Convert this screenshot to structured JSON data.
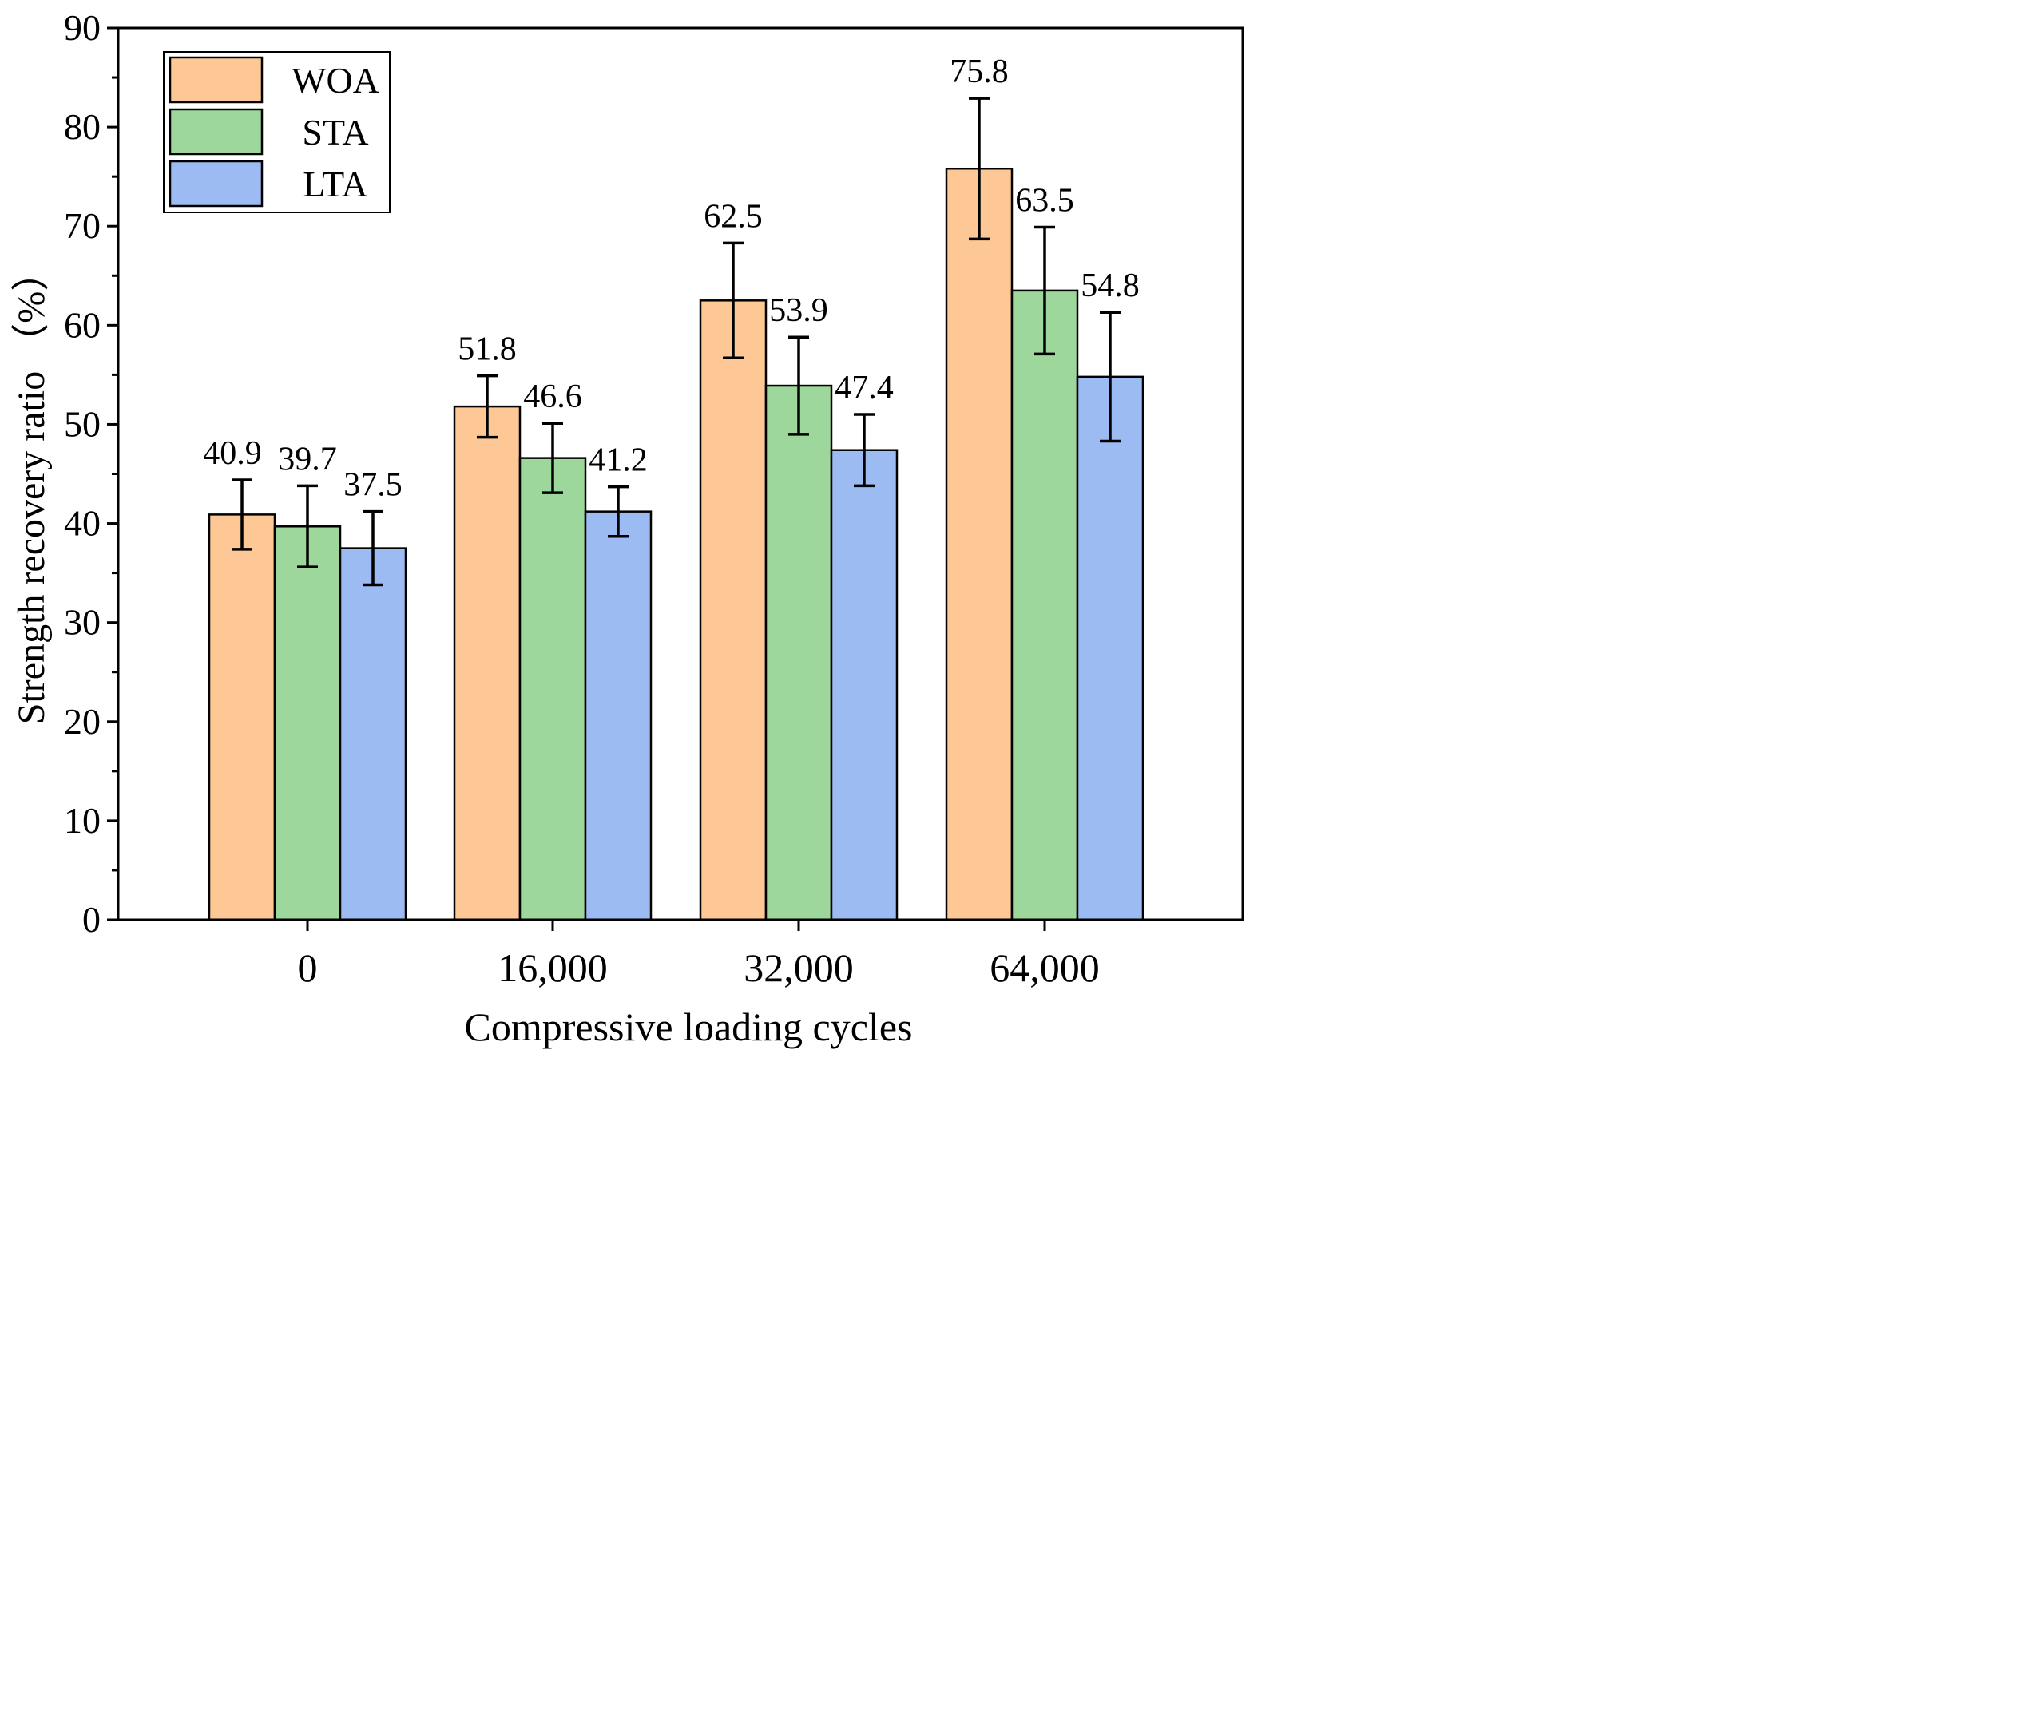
{
  "chart_data": {
    "type": "bar",
    "title": "",
    "xlabel": "Compressive loading cycles",
    "ylabel": "Strength recovery ratio  （%）",
    "categories": [
      "0",
      "16,000",
      "32,000",
      "64,000"
    ],
    "ylim": [
      0,
      90
    ],
    "yticks": [
      0,
      10,
      20,
      30,
      40,
      50,
      60,
      70,
      80,
      90
    ],
    "ytick_labels": [
      "0",
      "10",
      "20",
      "30",
      "40",
      "50",
      "60",
      "70",
      "80",
      "90"
    ],
    "grid": false,
    "legend_position": "top-left",
    "series": [
      {
        "name": "WOA",
        "color": "#FDC896",
        "values": [
          40.9,
          51.8,
          62.5,
          75.8
        ],
        "labels": [
          "40.9",
          "51.8",
          "62.5",
          "75.8"
        ],
        "error_low": [
          37.4,
          48.7,
          56.7,
          68.7
        ],
        "error_high": [
          44.4,
          54.9,
          68.3,
          82.9
        ]
      },
      {
        "name": "STA",
        "color": "#9ED79B",
        "values": [
          39.7,
          46.6,
          53.9,
          63.5
        ],
        "labels": [
          "39.7",
          "46.6",
          "53.9",
          "63.5"
        ],
        "error_low": [
          35.6,
          43.1,
          49.0,
          57.1
        ],
        "error_high": [
          43.8,
          50.1,
          58.8,
          69.9
        ]
      },
      {
        "name": "LTA",
        "color": "#9DBBF3",
        "values": [
          37.5,
          41.2,
          47.4,
          54.8
        ],
        "labels": [
          "37.5",
          "41.2",
          "47.4",
          "54.8"
        ],
        "error_low": [
          33.8,
          38.7,
          43.8,
          48.3
        ],
        "error_high": [
          41.2,
          43.7,
          51.0,
          61.3
        ]
      }
    ]
  }
}
